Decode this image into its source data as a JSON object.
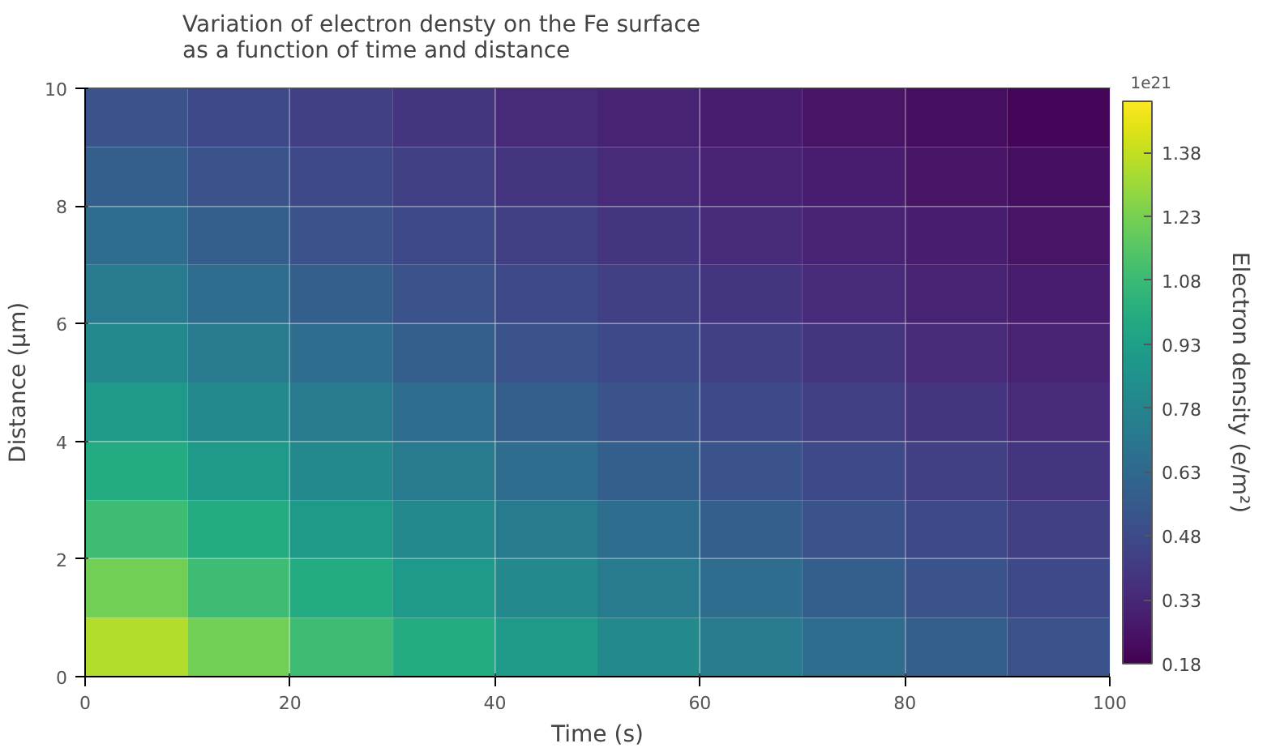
{
  "chart_data": {
    "type": "heatmap",
    "title": "Variation of electron  densty on the Fe surface\n as a function of time and distance",
    "xlabel": "Time (s)",
    "ylabel": "Distance (μm)",
    "clabel": "Electron density (e/m²)",
    "annotations": [
      "1e21"
    ],
    "x": [
      5,
      15,
      25,
      35,
      45,
      55,
      65,
      75,
      85,
      95
    ],
    "y": [
      9.5,
      8.5,
      7.5,
      6.5,
      5.5,
      4.5,
      3.5,
      2.5,
      1.5,
      0.5
    ],
    "xlim": [
      0,
      100
    ],
    "xticks": [
      0,
      20,
      40,
      60,
      80,
      100
    ],
    "ylim": [
      0,
      10
    ],
    "yticks": [
      0,
      2,
      4,
      6,
      8,
      10
    ],
    "clim": [
      0.18,
      1.5
    ],
    "cticks": [
      0.18,
      0.33,
      0.48,
      0.63,
      0.78,
      0.93,
      1.08,
      1.23,
      1.38
    ],
    "grid": true,
    "cells": [
      [
        0.52,
        0.47,
        0.43,
        0.38,
        0.34,
        0.31,
        0.28,
        0.25,
        0.23,
        0.2
      ],
      [
        0.58,
        0.52,
        0.47,
        0.43,
        0.38,
        0.34,
        0.31,
        0.28,
        0.25,
        0.23
      ],
      [
        0.65,
        0.58,
        0.52,
        0.47,
        0.43,
        0.38,
        0.34,
        0.31,
        0.28,
        0.25
      ],
      [
        0.72,
        0.65,
        0.58,
        0.52,
        0.47,
        0.43,
        0.38,
        0.34,
        0.31,
        0.28
      ],
      [
        0.8,
        0.72,
        0.65,
        0.58,
        0.52,
        0.47,
        0.43,
        0.38,
        0.34,
        0.31
      ],
      [
        0.89,
        0.8,
        0.72,
        0.65,
        0.58,
        0.52,
        0.47,
        0.43,
        0.38,
        0.34
      ],
      [
        0.99,
        0.89,
        0.8,
        0.72,
        0.65,
        0.58,
        0.52,
        0.47,
        0.43,
        0.38
      ],
      [
        1.09,
        0.99,
        0.89,
        0.8,
        0.72,
        0.65,
        0.58,
        0.52,
        0.47,
        0.43
      ],
      [
        1.22,
        1.09,
        0.99,
        0.89,
        0.8,
        0.72,
        0.65,
        0.58,
        0.52,
        0.47
      ],
      [
        1.35,
        1.22,
        1.09,
        0.99,
        0.89,
        0.8,
        0.72,
        0.65,
        0.58,
        0.52
      ]
    ]
  }
}
